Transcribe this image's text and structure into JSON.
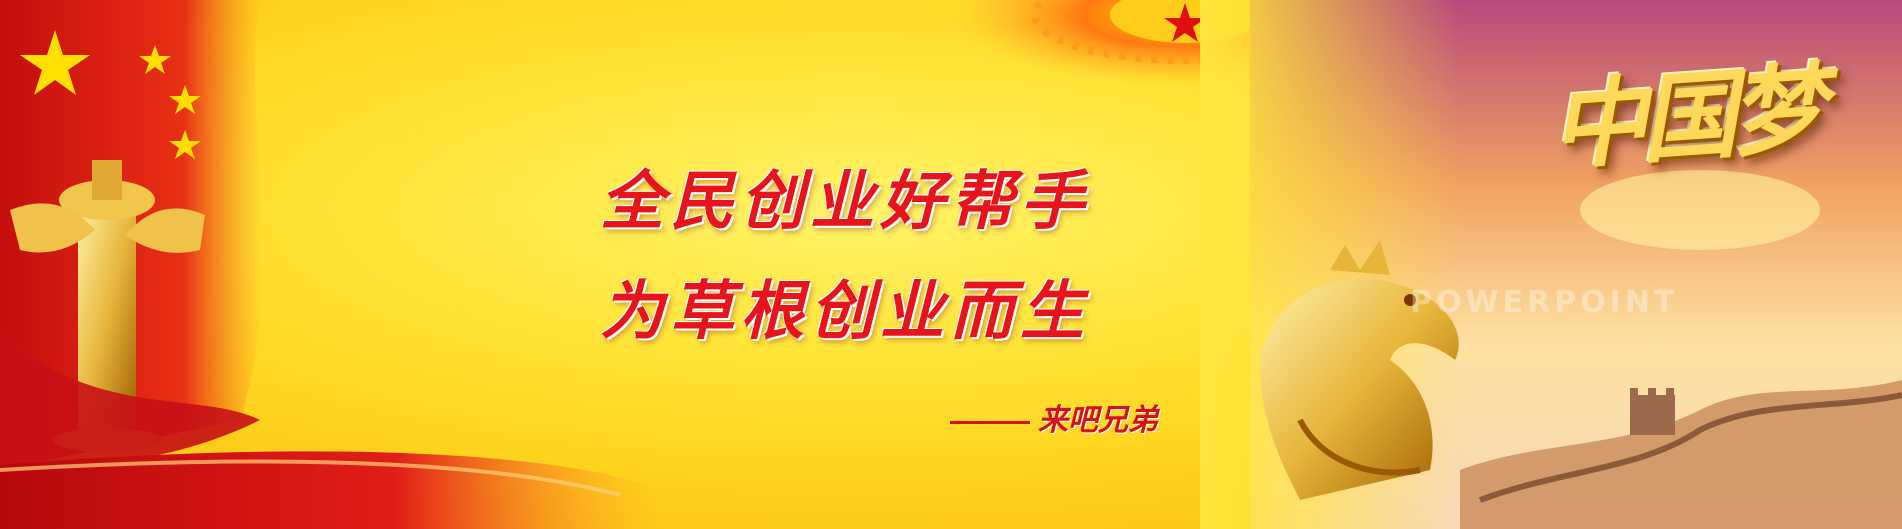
{
  "banner": {
    "headline_line1": "全民创业好帮手",
    "headline_line2": "为草根创业而生",
    "signature": "来吧兄弟",
    "logo_text": "中国梦",
    "watermark": "POWERPOINT"
  },
  "colors": {
    "background_center": "#fff36a",
    "background_edge": "#f7b70e",
    "headline": "#e8141b",
    "flag_red": "#d9121a",
    "gold": "#e7b53a"
  },
  "decorations": {
    "left": [
      "flag-icon",
      "huabiao-column-icon",
      "red-silk-ribbon"
    ],
    "top_center": [
      "national-emblem-icon"
    ],
    "right": [
      "dragon-icon",
      "great-wall-icon",
      "sunset-sky"
    ]
  }
}
